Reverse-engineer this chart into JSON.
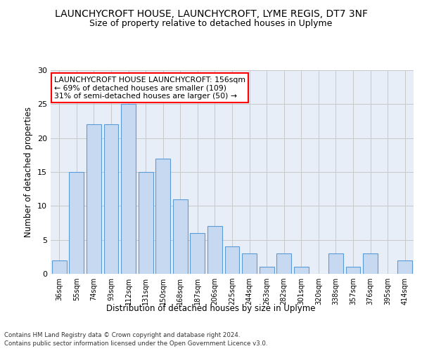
{
  "title1": "LAUNCHYCROFT HOUSE, LAUNCHYCROFT, LYME REGIS, DT7 3NF",
  "title2": "Size of property relative to detached houses in Uplyme",
  "xlabel": "Distribution of detached houses by size in Uplyme",
  "ylabel": "Number of detached properties",
  "categories": [
    "36sqm",
    "55sqm",
    "74sqm",
    "93sqm",
    "112sqm",
    "131sqm",
    "150sqm",
    "168sqm",
    "187sqm",
    "206sqm",
    "225sqm",
    "244sqm",
    "263sqm",
    "282sqm",
    "301sqm",
    "320sqm",
    "338sqm",
    "357sqm",
    "376sqm",
    "395sqm",
    "414sqm"
  ],
  "values": [
    2,
    15,
    22,
    22,
    25,
    15,
    17,
    11,
    6,
    7,
    4,
    3,
    1,
    3,
    1,
    0,
    3,
    1,
    3,
    0,
    2
  ],
  "bar_color": "#c6d9f1",
  "bar_edge_color": "#5b9bd5",
  "annotation_text_line1": "LAUNCHYCROFT HOUSE LAUNCHYCROFT: 156sqm",
  "annotation_text_line2": "← 69% of detached houses are smaller (109)",
  "annotation_text_line3": "31% of semi-detached houses are larger (50) →",
  "annotation_box_color": "white",
  "annotation_box_edge_color": "red",
  "ylim": [
    0,
    30
  ],
  "yticks": [
    0,
    5,
    10,
    15,
    20,
    25,
    30
  ],
  "grid_color": "#c8c8c8",
  "bg_color": "#e8eef7",
  "title_fontsize": 10,
  "subtitle_fontsize": 9,
  "footnote1": "Contains HM Land Registry data © Crown copyright and database right 2024.",
  "footnote2": "Contains public sector information licensed under the Open Government Licence v3.0."
}
